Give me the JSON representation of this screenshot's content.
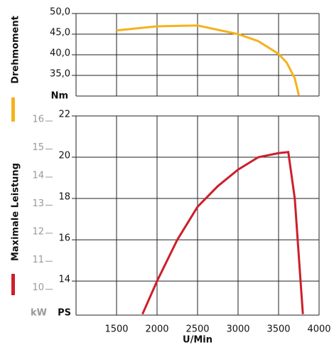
{
  "chart_data": [
    {
      "type": "line",
      "x": [
        1500,
        2000,
        2500,
        3000,
        3250,
        3500,
        3600,
        3700,
        3750
      ],
      "series": [
        {
          "name": "Drehmoment",
          "color": "#f5b21b",
          "values": [
            45.9,
            46.9,
            47.1,
            45.0,
            43.3,
            40.2,
            38.1,
            34.3,
            30.2
          ]
        }
      ],
      "xlim": [
        1000,
        4000
      ],
      "ylim": [
        30,
        50
      ],
      "yticks": [
        {
          "value": 35,
          "label": "35,0"
        },
        {
          "value": 40,
          "label": "40,0"
        },
        {
          "value": 45,
          "label": "45,0"
        },
        {
          "value": 50,
          "label": "50,0"
        }
      ],
      "y_label": "Nm"
    },
    {
      "type": "line",
      "x": [
        1820,
        2000,
        2250,
        2500,
        2750,
        3000,
        3250,
        3500,
        3620,
        3700,
        3800
      ],
      "series": [
        {
          "name": "Maximale Leistung",
          "color": "#cc1f2b",
          "values": [
            12.4,
            14.0,
            16.0,
            17.6,
            18.6,
            19.4,
            20.0,
            20.2,
            20.25,
            18.0,
            12.4
          ]
        }
      ],
      "xlim": [
        1000,
        4000
      ],
      "xticks": [
        1500,
        2000,
        2500,
        3000,
        3500,
        4000
      ],
      "x_label": "U/Min",
      "ylim": [
        12.35,
        22
      ],
      "yticks": [
        14,
        16,
        18,
        20,
        22
      ],
      "y_label": "PS",
      "y2lim": [
        9.08,
        16.18
      ],
      "y2ticks": [
        10,
        11,
        12,
        13,
        14,
        15,
        16
      ],
      "y2_label": "kW"
    }
  ]
}
